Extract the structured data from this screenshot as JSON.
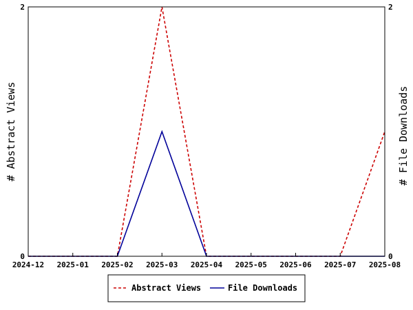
{
  "chart_data": {
    "type": "line",
    "x": [
      "2024-12",
      "2025-01",
      "2025-02",
      "2025-03",
      "2025-04",
      "2025-05",
      "2025-06",
      "2025-07",
      "2025-08"
    ],
    "ylabel": "# Abstract Views",
    "y2label": "# File Downloads",
    "ylim": [
      0,
      2
    ],
    "y2lim": [
      0,
      2
    ],
    "yticks": [
      "0",
      "2"
    ],
    "y2ticks": [
      "0",
      "2"
    ],
    "grid": false,
    "legend_position": "bottom",
    "series": [
      {
        "name": "Abstract Views",
        "axis": "left",
        "color": "#cc0000",
        "dash": "dashed",
        "values": [
          0,
          0,
          0,
          2,
          0,
          0,
          0,
          0,
          1
        ]
      },
      {
        "name": "File Downloads",
        "axis": "right",
        "color": "#000099",
        "dash": "solid",
        "values": [
          0,
          0,
          0,
          1,
          0,
          0,
          0,
          0,
          0
        ]
      }
    ]
  }
}
